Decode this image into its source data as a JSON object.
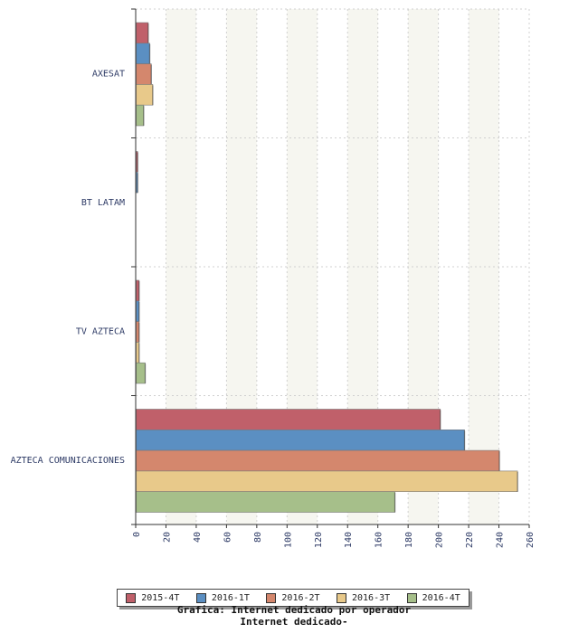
{
  "chart_data": {
    "type": "bar",
    "orientation": "horizontal",
    "categories": [
      "AXESAT",
      "BT LATAM",
      "TV AZTECA",
      "AZTECA COMUNICACIONES"
    ],
    "series": [
      {
        "name": "2015-4T",
        "color": "#c0606a",
        "values": [
          8,
          1,
          2,
          201
        ]
      },
      {
        "name": "2016-1T",
        "color": "#5b8fc2",
        "values": [
          9,
          1,
          2,
          217
        ]
      },
      {
        "name": "2016-2T",
        "color": "#d4876d",
        "values": [
          10,
          0,
          2,
          240
        ]
      },
      {
        "name": "2016-3T",
        "color": "#e8c98a",
        "values": [
          11,
          0,
          2,
          252
        ]
      },
      {
        "name": "2016-4T",
        "color": "#a6bf8a",
        "values": [
          5,
          0,
          6,
          171
        ]
      }
    ],
    "xlim": [
      0,
      260
    ],
    "xticks": [
      0,
      20,
      40,
      60,
      80,
      100,
      120,
      140,
      160,
      180,
      200,
      220,
      240,
      260
    ],
    "grid": true,
    "legend_position": "bottom",
    "caption_lines": [
      "Grafica: Internet dedicado por operador",
      "Internet dedicado-"
    ]
  }
}
